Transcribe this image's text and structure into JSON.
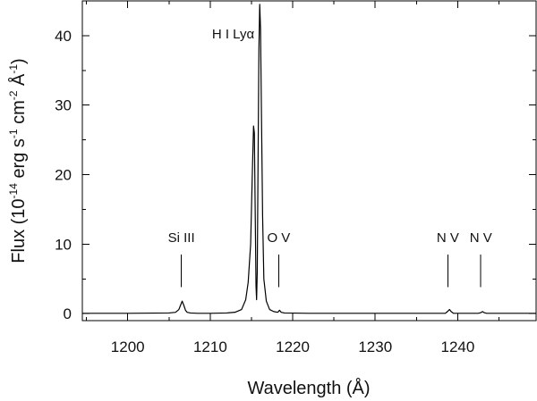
{
  "chart_data": {
    "type": "line",
    "title": "",
    "xlabel": "Wavelength (Å)",
    "ylabel": {
      "prefix": "Flux (10",
      "exp1": "-14",
      "mid1": " erg s",
      "exp2": "-1",
      "mid2": " cm",
      "exp3": "-2",
      "mid3": " Å",
      "exp4": "-1",
      "suffix": ")"
    },
    "xlim": [
      1194.5,
      1249.5
    ],
    "ylim": [
      -1,
      45
    ],
    "xticks": [
      1200,
      1210,
      1220,
      1230,
      1240
    ],
    "xtick_labels": [
      "1200",
      "1210",
      "1220",
      "1230",
      "1240"
    ],
    "yticks": [
      0,
      10,
      20,
      30,
      40
    ],
    "ytick_labels": [
      "0",
      "10",
      "20",
      "30",
      "40"
    ],
    "grid": false,
    "series": [
      {
        "color": "#000000",
        "x": [
          1194.5,
          1200.0,
          1205.0,
          1205.8,
          1206.2,
          1206.4,
          1206.6,
          1206.8,
          1207.0,
          1207.2,
          1207.6,
          1208.5,
          1210.0,
          1212.0,
          1213.0,
          1213.8,
          1214.3,
          1214.6,
          1214.9,
          1215.1,
          1215.25,
          1215.35,
          1215.45,
          1215.55,
          1215.62,
          1215.7,
          1215.8,
          1215.9,
          1216.0,
          1216.1,
          1216.2,
          1216.35,
          1216.5,
          1216.8,
          1217.2,
          1217.7,
          1218.2,
          1218.4,
          1218.6,
          1219.0,
          1222.0,
          1230.0,
          1238.5,
          1238.8,
          1239.0,
          1239.2,
          1239.5,
          1242.5,
          1242.8,
          1243.0,
          1243.2,
          1243.5,
          1249.5
        ],
        "y": [
          0.05,
          0.05,
          0.1,
          0.2,
          0.6,
          1.2,
          1.8,
          1.2,
          0.5,
          0.2,
          0.1,
          0.05,
          0.05,
          0.1,
          0.2,
          0.6,
          2.0,
          4.5,
          10.0,
          20.0,
          27.0,
          26.0,
          15.0,
          4.0,
          2.0,
          6.0,
          22.0,
          38.0,
          44.5,
          41.0,
          30.0,
          14.0,
          5.0,
          1.8,
          0.6,
          0.3,
          0.2,
          0.5,
          0.2,
          0.1,
          0.05,
          0.05,
          0.05,
          0.35,
          0.6,
          0.3,
          0.05,
          0.05,
          0.15,
          0.3,
          0.15,
          0.05,
          0.05
        ]
      }
    ],
    "annotations": [
      {
        "label": "H I Lyα",
        "x": 1215.67,
        "label_y": 39.6,
        "line_from": null,
        "line_to": null,
        "anchor": "end"
      },
      {
        "label": "Si III",
        "x": 1206.5,
        "label_y": 10.3,
        "line_from": 8.5,
        "line_to": 3.8,
        "anchor": "middle"
      },
      {
        "label": "O V",
        "x": 1218.3,
        "label_y": 10.3,
        "line_from": 8.5,
        "line_to": 3.8,
        "anchor": "middle"
      },
      {
        "label": "N V",
        "x": 1238.8,
        "label_y": 10.3,
        "line_from": 8.5,
        "line_to": 3.8,
        "anchor": "middle"
      },
      {
        "label": "N V",
        "x": 1242.8,
        "label_y": 10.3,
        "line_from": 8.5,
        "line_to": 3.8,
        "anchor": "middle"
      }
    ]
  }
}
